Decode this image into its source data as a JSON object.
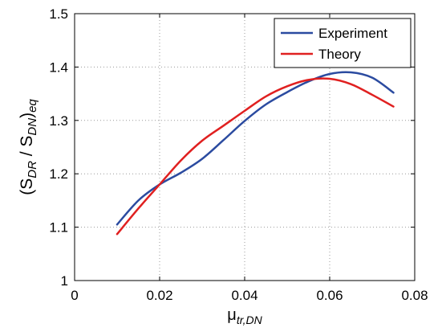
{
  "chart_data": {
    "type": "line",
    "xlabel_main": "μ",
    "xlabel_sub": "tr,DN",
    "ylabel": {
      "open": "(S",
      "sub1": "DR",
      "mid": " / S",
      "sub2": "DN",
      "close": ")",
      "sub3": "eq"
    },
    "xlim": [
      0,
      0.08
    ],
    "ylim": [
      1,
      1.5
    ],
    "xticks": [
      0,
      0.02,
      0.04,
      0.06,
      0.08
    ],
    "xtick_labels": [
      "0",
      "0.02",
      "0.04",
      "0.06",
      "0.08"
    ],
    "yticks": [
      1,
      1.1,
      1.2,
      1.3,
      1.4,
      1.5
    ],
    "ytick_labels": [
      "1",
      "1.1",
      "1.2",
      "1.3",
      "1.4",
      "1.5"
    ],
    "grid": true,
    "legend_position": "top-right",
    "series": [
      {
        "name": "Experiment",
        "color": "#2b4ba0",
        "x": [
          0.01,
          0.015,
          0.02,
          0.025,
          0.03,
          0.035,
          0.04,
          0.045,
          0.05,
          0.055,
          0.06,
          0.065,
          0.07,
          0.075
        ],
        "y": [
          1.105,
          1.15,
          1.18,
          1.202,
          1.228,
          1.263,
          1.299,
          1.33,
          1.353,
          1.373,
          1.387,
          1.39,
          1.38,
          1.352
        ]
      },
      {
        "name": "Theory",
        "color": "#e02020",
        "x": [
          0.01,
          0.015,
          0.02,
          0.025,
          0.03,
          0.035,
          0.04,
          0.045,
          0.05,
          0.055,
          0.06,
          0.065,
          0.07,
          0.075
        ],
        "y": [
          1.087,
          1.135,
          1.18,
          1.225,
          1.262,
          1.29,
          1.318,
          1.345,
          1.364,
          1.376,
          1.378,
          1.368,
          1.348,
          1.326
        ]
      }
    ]
  }
}
